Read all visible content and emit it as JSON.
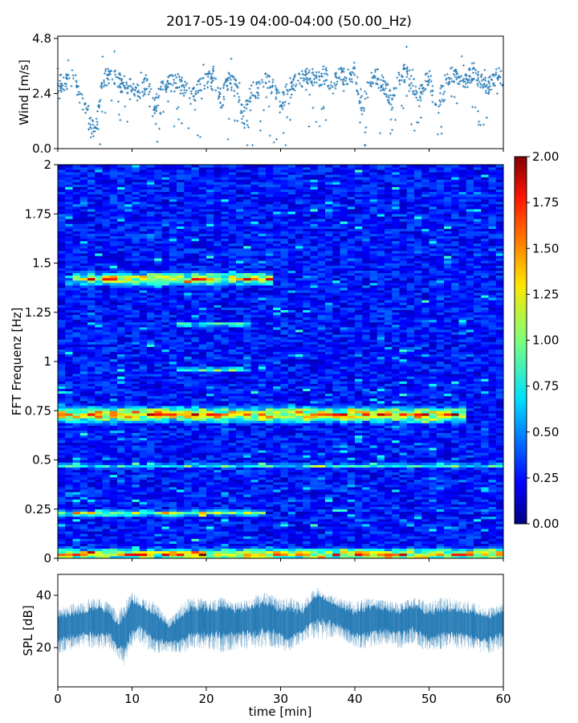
{
  "title": "2017-05-19 04:00-04:00 (50.00_Hz)",
  "chart_data": [
    {
      "type": "scatter",
      "ylabel": "Wind [m/s]",
      "xlim": [
        0,
        60
      ],
      "ylim": [
        0,
        4.9
      ],
      "yticks": [
        "0.0",
        "2.4",
        "4.8"
      ],
      "ytick_values": [
        0,
        2.4,
        4.8
      ],
      "color": "#1f77b4",
      "profile": {
        "x": [
          0,
          2,
          4,
          5,
          6,
          7,
          8,
          9,
          10,
          11,
          12,
          13,
          14,
          15,
          16,
          17,
          18,
          19,
          20,
          21,
          22,
          23,
          24,
          25,
          26,
          27,
          28,
          29,
          30,
          31,
          32,
          33,
          34,
          35,
          36,
          37,
          38,
          39,
          40,
          41,
          42,
          43,
          44,
          45,
          46,
          47,
          48,
          49,
          50,
          51,
          52,
          53,
          54,
          55,
          56,
          57,
          58,
          59,
          60
        ],
        "y": [
          2.8,
          3.1,
          1.6,
          0.6,
          3.0,
          3.2,
          3.1,
          2.6,
          2.7,
          2.4,
          2.9,
          1.8,
          2.6,
          2.8,
          2.9,
          2.7,
          2.3,
          2.6,
          2.9,
          3.2,
          2.1,
          3.0,
          2.7,
          1.3,
          2.5,
          2.6,
          3.0,
          2.6,
          1.9,
          2.6,
          2.9,
          3.0,
          3.2,
          3.0,
          3.3,
          2.7,
          3.2,
          3.1,
          3.4,
          1.6,
          2.9,
          3.1,
          2.7,
          2.0,
          3.0,
          3.4,
          2.6,
          2.4,
          3.2,
          1.6,
          2.8,
          3.2,
          3.1,
          3.0,
          3.4,
          2.9,
          2.7,
          3.2,
          3.0
        ]
      }
    },
    {
      "type": "heatmap",
      "ylabel": "FFT Frequenz [Hz]",
      "xlim": [
        0,
        60
      ],
      "ylim": [
        0,
        2
      ],
      "yticks": [
        "0",
        "0.25",
        "0.5",
        "0.75",
        "1",
        "1.25",
        "1.5",
        "1.75",
        "2"
      ],
      "ytick_values": [
        0,
        0.25,
        0.5,
        0.75,
        1,
        1.25,
        1.5,
        1.75,
        2
      ],
      "colormap": "jet",
      "colorbar": {
        "range": [
          0,
          2
        ],
        "ticks": [
          "0.00",
          "0.25",
          "0.50",
          "0.75",
          "1.00",
          "1.25",
          "1.50",
          "1.75",
          "2.00"
        ],
        "tick_values": [
          0,
          0.25,
          0.5,
          0.75,
          1,
          1.25,
          1.5,
          1.75,
          2
        ]
      },
      "bands": [
        {
          "freq": 0.02,
          "width": 0.04,
          "t_start": 0,
          "t_end": 60,
          "level": 1.2
        },
        {
          "freq": 0.23,
          "width": 0.02,
          "t_start": 0,
          "t_end": 28,
          "level": 0.9
        },
        {
          "freq": 0.47,
          "width": 0.015,
          "t_start": 0,
          "t_end": 60,
          "level": 0.6
        },
        {
          "freq": 0.73,
          "width": 0.05,
          "t_start": 0,
          "t_end": 55,
          "level": 1.3
        },
        {
          "freq": 0.96,
          "width": 0.015,
          "t_start": 16,
          "t_end": 26,
          "level": 0.8
        },
        {
          "freq": 1.19,
          "width": 0.015,
          "t_start": 16,
          "t_end": 26,
          "level": 0.8
        },
        {
          "freq": 1.42,
          "width": 0.04,
          "t_start": 2,
          "t_end": 29,
          "level": 1.2
        }
      ]
    },
    {
      "type": "area",
      "xlabel": "time [min]",
      "ylabel": "SPL [dB]",
      "xlim": [
        0,
        60
      ],
      "ylim": [
        5,
        48
      ],
      "xticks": [
        "0",
        "10",
        "20",
        "30",
        "40",
        "50",
        "60"
      ],
      "xtick_values": [
        0,
        10,
        20,
        30,
        40,
        50,
        60
      ],
      "yticks": [
        "20",
        "40"
      ],
      "ytick_values": [
        20,
        40
      ],
      "color": "#1f77b4",
      "envelope": {
        "x": [
          0,
          3,
          5,
          7,
          8,
          9,
          10,
          11,
          13,
          15,
          17,
          18,
          20,
          22,
          24,
          26,
          28,
          30,
          31,
          33,
          34,
          35,
          36,
          38,
          40,
          42,
          44,
          46,
          48,
          50,
          52,
          54,
          56,
          58,
          60
        ],
        "upper": [
          34,
          36,
          38,
          36,
          32,
          36,
          40,
          38,
          36,
          30,
          36,
          38,
          37,
          38,
          36,
          38,
          40,
          37,
          38,
          36,
          40,
          42,
          40,
          38,
          36,
          38,
          37,
          36,
          38,
          36,
          38,
          37,
          36,
          34,
          36
        ],
        "lower": [
          20,
          22,
          22,
          22,
          18,
          16,
          22,
          24,
          20,
          20,
          20,
          22,
          22,
          21,
          22,
          22,
          23,
          22,
          20,
          24,
          26,
          26,
          26,
          26,
          22,
          22,
          24,
          22,
          24,
          20,
          22,
          22,
          21,
          20,
          22
        ],
        "mid": [
          28,
          29,
          31,
          30,
          24,
          26,
          34,
          33,
          28,
          25,
          28,
          30,
          30,
          31,
          30,
          31,
          32,
          30,
          28,
          30,
          34,
          37,
          36,
          32,
          29,
          31,
          31,
          30,
          32,
          28,
          30,
          30,
          29,
          28,
          30
        ]
      }
    }
  ]
}
